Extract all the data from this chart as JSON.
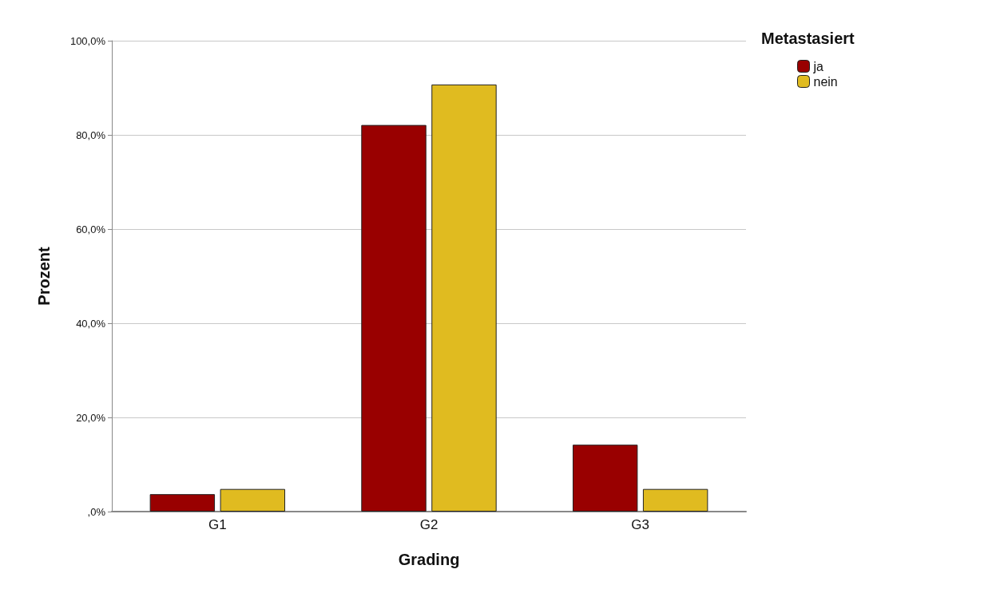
{
  "chart_data": {
    "type": "bar",
    "xlabel": "Grading",
    "ylabel": "Prozent",
    "legend_title": "Metastasiert",
    "categories": [
      "G1",
      "G2",
      "G3"
    ],
    "series": [
      {
        "name": "ja",
        "color": "#990000",
        "values": [
          3.7,
          82.1,
          14.2
        ]
      },
      {
        "name": "nein",
        "color": "#e0bb20",
        "values": [
          4.8,
          90.7,
          4.8
        ]
      }
    ],
    "ylim": [
      0,
      100
    ],
    "yticks": [
      {
        "value": 0,
        "label": ",0%"
      },
      {
        "value": 20,
        "label": "20,0%"
      },
      {
        "value": 40,
        "label": "40,0%"
      },
      {
        "value": 60,
        "label": "60,0%"
      },
      {
        "value": 80,
        "label": "80,0%"
      },
      {
        "value": 100,
        "label": "100,0%"
      }
    ],
    "grid": "y",
    "legend": "top right"
  }
}
